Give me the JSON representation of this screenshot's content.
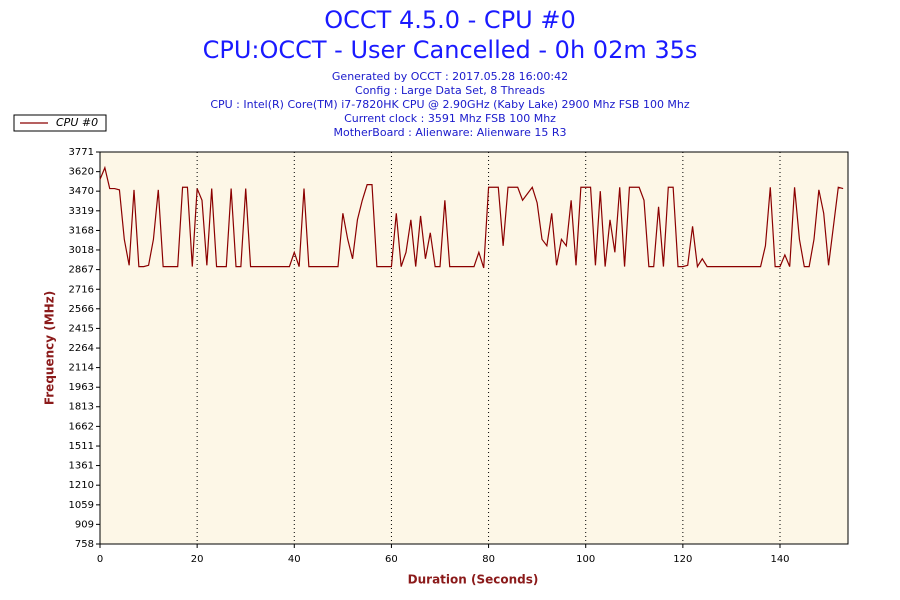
{
  "chart_data": {
    "type": "line",
    "title": "OCCT 4.5.0 - CPU #0",
    "subtitle": "CPU:OCCT - User Cancelled - 0h 02m 35s",
    "info": [
      "Generated by OCCT : 2017.05.28 16:00:42",
      "Config : Large Data Set, 8 Threads",
      "CPU : Intel(R) Core(TM) i7-7820HK CPU @ 2.90GHz (Kaby Lake) 2900 Mhz FSB 100 Mhz",
      "Current clock : 3591 Mhz FSB 100 Mhz",
      "MotherBoard : Alienware: Alienware 15 R3"
    ],
    "x_label": "Duration (Seconds)",
    "y_label": "Frequency (MHz)",
    "xlim": [
      0,
      154
    ],
    "ylim": [
      758,
      3771
    ],
    "xticks": [
      0,
      20,
      40,
      60,
      80,
      100,
      120,
      140
    ],
    "yticks": [
      758,
      909,
      1059,
      1210,
      1361,
      1511,
      1662,
      1813,
      1963,
      2114,
      2264,
      2415,
      2566,
      2716,
      2867,
      3018,
      3168,
      3319,
      3470,
      3620,
      3771
    ],
    "grid": "x",
    "legend": "top-left",
    "x": [
      0,
      1,
      2,
      3,
      4,
      5,
      6,
      7,
      8,
      9,
      10,
      11,
      12,
      13,
      14,
      15,
      16,
      17,
      18,
      19,
      20,
      21,
      22,
      23,
      24,
      25,
      26,
      27,
      28,
      29,
      30,
      31,
      32,
      33,
      34,
      35,
      36,
      37,
      38,
      39,
      40,
      41,
      42,
      43,
      44,
      45,
      46,
      47,
      48,
      49,
      50,
      51,
      52,
      53,
      54,
      55,
      56,
      57,
      58,
      59,
      60,
      61,
      62,
      63,
      64,
      65,
      66,
      67,
      68,
      69,
      70,
      71,
      72,
      73,
      74,
      75,
      76,
      77,
      78,
      79,
      80,
      81,
      82,
      83,
      84,
      85,
      86,
      87,
      88,
      89,
      90,
      91,
      92,
      93,
      94,
      95,
      96,
      97,
      98,
      99,
      100,
      101,
      102,
      103,
      104,
      105,
      106,
      107,
      108,
      109,
      110,
      111,
      112,
      113,
      114,
      115,
      116,
      117,
      118,
      119,
      120,
      121,
      122,
      123,
      124,
      125,
      126,
      127,
      128,
      129,
      130,
      131,
      132,
      133,
      134,
      135,
      136,
      137,
      138,
      139,
      140,
      141,
      142,
      143,
      144,
      145,
      146,
      147,
      148,
      149,
      150,
      151,
      152,
      153
    ],
    "series": [
      {
        "name": "CPU #0",
        "color": "#8b0000",
        "values": [
          3560,
          3650,
          3490,
          3490,
          3480,
          3100,
          2900,
          3480,
          2890,
          2890,
          2900,
          3100,
          3480,
          2890,
          2890,
          2890,
          2890,
          3500,
          3500,
          2890,
          3490,
          3400,
          2900,
          3490,
          2890,
          2890,
          2890,
          3490,
          2890,
          2890,
          3490,
          2890,
          2890,
          2890,
          2890,
          2890,
          2890,
          2890,
          2890,
          2890,
          3000,
          2890,
          3490,
          2890,
          2890,
          2890,
          2890,
          2890,
          2890,
          2890,
          3300,
          3100,
          2950,
          3250,
          3400,
          3520,
          3520,
          2890,
          2890,
          2890,
          2890,
          3300,
          2890,
          3000,
          3250,
          2890,
          3280,
          2950,
          3150,
          2890,
          2890,
          3400,
          2890,
          2890,
          2890,
          2890,
          2890,
          2890,
          3000,
          2880,
          3500,
          3500,
          3500,
          3050,
          3500,
          3500,
          3500,
          3400,
          3450,
          3500,
          3380,
          3100,
          3050,
          3300,
          2900,
          3100,
          3050,
          3400,
          2900,
          3500,
          3500,
          3500,
          2900,
          3470,
          2890,
          3250,
          3000,
          3500,
          2890,
          3500,
          3500,
          3500,
          3400,
          2890,
          2890,
          3350,
          2890,
          3500,
          3500,
          2890,
          2890,
          2900,
          3200,
          2890,
          2950,
          2890,
          2890,
          2890,
          2890,
          2890,
          2890,
          2890,
          2890,
          2890,
          2890,
          2890,
          2890,
          3050,
          3500,
          2890,
          2890,
          2980,
          2890,
          3500,
          3100,
          2890,
          2890,
          3100,
          3480,
          3300,
          2900,
          3200,
          3500,
          3490
        ]
      }
    ]
  }
}
